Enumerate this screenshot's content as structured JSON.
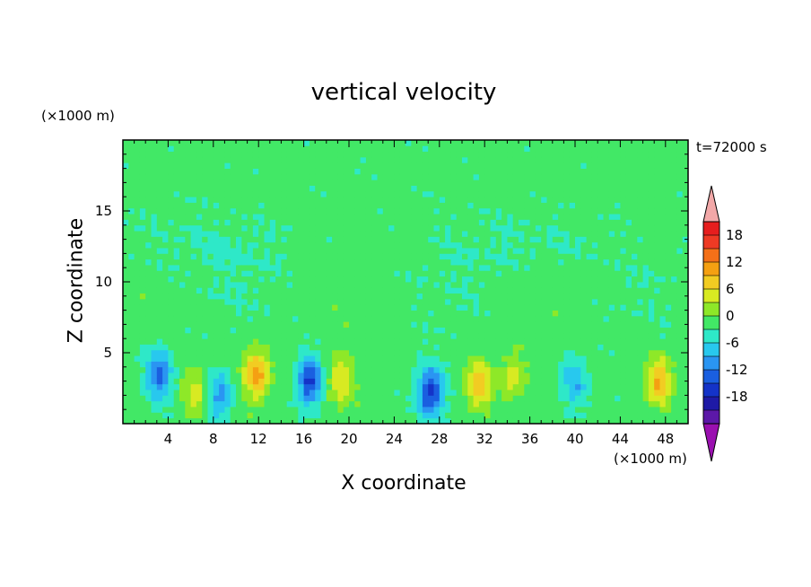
{
  "chart_data": {
    "type": "heatmap",
    "title": "vertical velocity",
    "xlabel": "X coordinate",
    "ylabel": "Z coordinate",
    "x_unit": "(×1000 m)",
    "y_unit": "(×1000 m)",
    "time_label": "t=72000 s",
    "xlim": [
      0,
      50
    ],
    "ylim": [
      0,
      20
    ],
    "x_ticks": [
      "4",
      "8",
      "12",
      "16",
      "20",
      "24",
      "28",
      "32",
      "36",
      "40",
      "44",
      "48"
    ],
    "y_ticks": [
      "5",
      "10",
      "15"
    ],
    "colorbar": {
      "ticks": [
        "18",
        "12",
        "6",
        "0",
        "-6",
        "-12",
        "-18"
      ],
      "levels": [
        -21,
        -18,
        -15,
        -12,
        -9,
        -6,
        -3,
        0,
        3,
        6,
        9,
        12,
        15,
        18,
        21
      ],
      "colors": [
        "#9a10b0",
        "#5c18a8",
        "#1e1aa6",
        "#1433c8",
        "#1a5fe0",
        "#2a95f2",
        "#28c8ee",
        "#2ee8c8",
        "#42e866",
        "#8ee828",
        "#d8ea22",
        "#f2cc22",
        "#f5a012",
        "#f47018",
        "#ee3a24",
        "#e61e1e",
        "#f2a8a8"
      ]
    },
    "features": [
      {
        "x": 3.2,
        "z": 3.5,
        "value": -12
      },
      {
        "x": 6.5,
        "z": 2.2,
        "value": 6
      },
      {
        "x": 8.5,
        "z": 2.0,
        "value": -8
      },
      {
        "x": 11.8,
        "z": 3.5,
        "value": 13
      },
      {
        "x": 16.5,
        "z": 3.0,
        "value": -14
      },
      {
        "x": 19.3,
        "z": 3.0,
        "value": 8
      },
      {
        "x": 27.2,
        "z": 2.2,
        "value": -15
      },
      {
        "x": 31.5,
        "z": 2.8,
        "value": 10
      },
      {
        "x": 34.5,
        "z": 3.2,
        "value": 6
      },
      {
        "x": 40.0,
        "z": 3.0,
        "value": -7
      },
      {
        "x": 47.5,
        "z": 3.0,
        "value": 11
      }
    ]
  }
}
